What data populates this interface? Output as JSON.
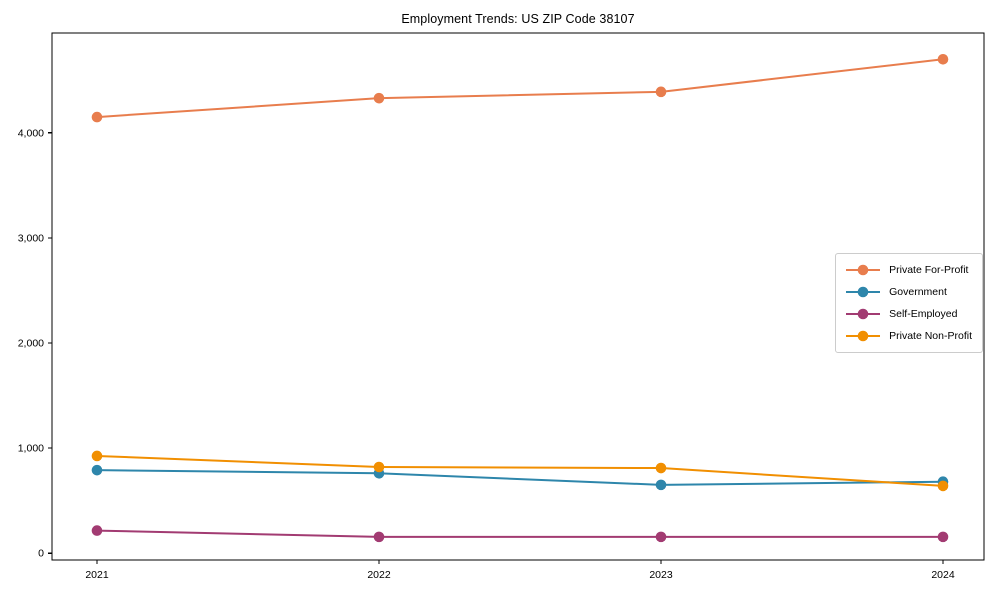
{
  "chart_data": {
    "type": "line",
    "title": "Employment Trends: US ZIP Code 38107",
    "x_labels": [
      "2021",
      "2022",
      "2023",
      "2024"
    ],
    "series": [
      {
        "name": "Private For-Profit",
        "color": "#e87d4d",
        "values": [
          4150,
          4330,
          4390,
          4700
        ]
      },
      {
        "name": "Government",
        "color": "#2e86ab",
        "values": [
          790,
          760,
          650,
          680
        ]
      },
      {
        "name": "Self-Employed",
        "color": "#a23b72",
        "values": [
          215,
          155,
          155,
          155
        ]
      },
      {
        "name": "Private Non-Profit",
        "color": "#f18f01",
        "values": [
          925,
          820,
          810,
          640
        ]
      }
    ],
    "ylim": [
      -65,
      4950
    ],
    "yticks": [
      0,
      1000,
      2000,
      3000,
      4000
    ],
    "ytick_labels": [
      "0",
      "1,000",
      "2,000",
      "3,000",
      "4,000"
    ],
    "xlabel": "",
    "ylabel": "",
    "grid": false,
    "legend_position": "center right",
    "marker": "circle",
    "background_color": "#ffffff",
    "spine_color": "#000000"
  }
}
